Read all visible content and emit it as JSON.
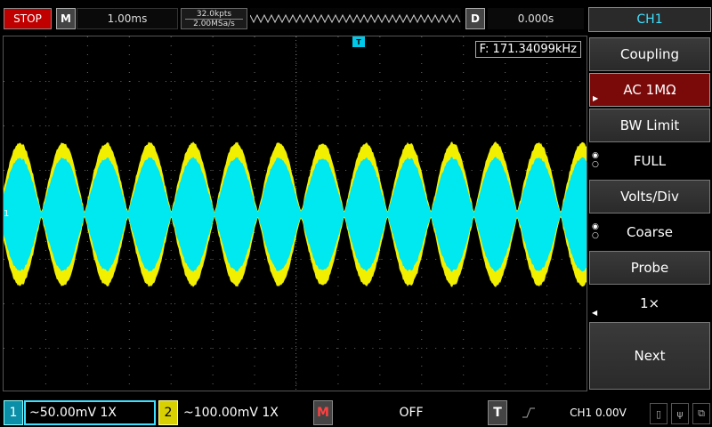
{
  "top": {
    "run_state": "STOP",
    "mode_badge": "M",
    "timebase": "1.00ms",
    "mem_depth": "32.0kpts",
    "sample_rate": "2.00MSa/s",
    "delay_badge": "D",
    "delay": "0.000s",
    "channel_tab": "CH1"
  },
  "screen": {
    "frequency": "F: 171.34099kHz",
    "trigger_marker": "T",
    "channel_marker": "1",
    "colors": {
      "ch1": "#00e8f0",
      "ch2": "#f2ef00",
      "grid": "#6a6a6a"
    }
  },
  "menu": {
    "coupling_label": "Coupling",
    "coupling_value": "AC 1MΩ",
    "bw_label": "BW Limit",
    "bw_value": "FULL",
    "volts_label": "Volts/Div",
    "volts_value": "Coarse",
    "probe_label": "Probe",
    "probe_value": "1×",
    "next_label": "Next"
  },
  "bottom": {
    "ch1_num": "1",
    "ch1_setting": "~50.00mV  1X",
    "ch2_num": "2",
    "ch2_setting": "~100.00mV  1X",
    "math_badge": "M",
    "math_value": "OFF",
    "trig_badge": "T",
    "trig_edge": "rising-edge-icon",
    "trig_value": "CH1  0.00V",
    "icons": [
      "usb-drive-icon",
      "usb-icon",
      "network-icon"
    ]
  }
}
